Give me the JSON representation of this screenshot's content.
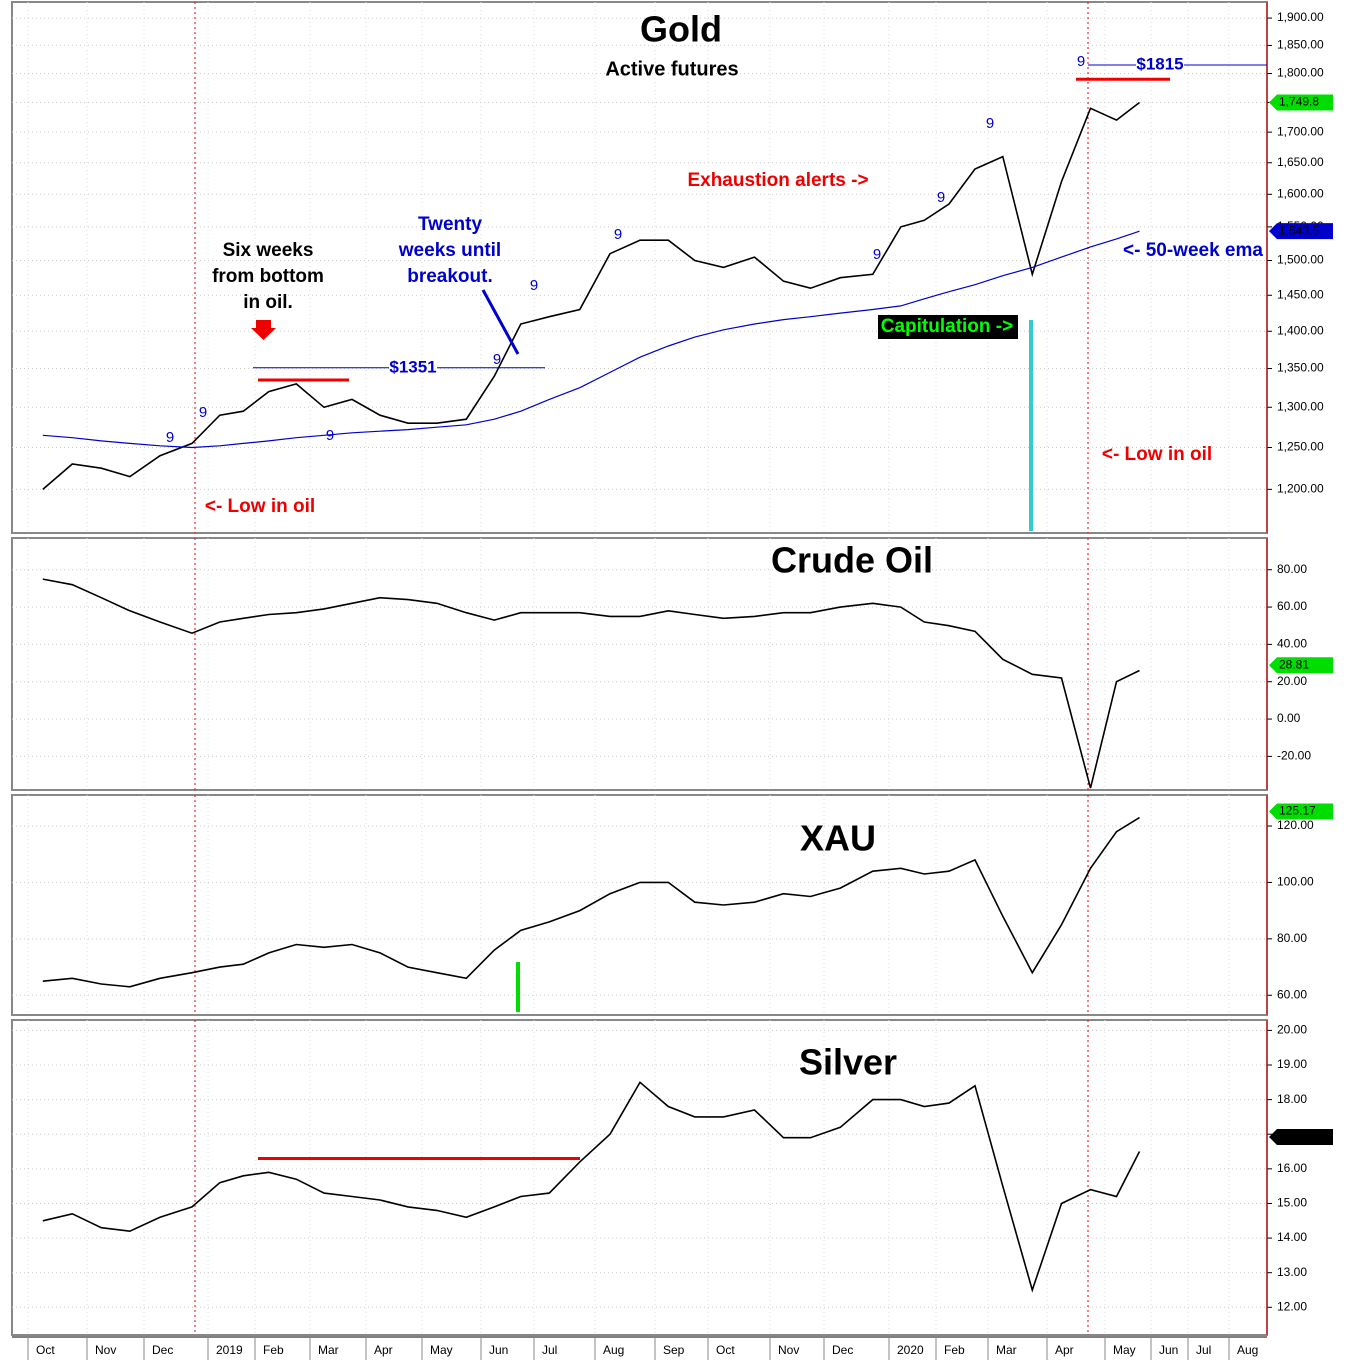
{
  "chart_data": [
    {
      "type": "line",
      "title": "Gold",
      "subtitle": "Active futures",
      "log_scale": true,
      "grid": true,
      "ylim": [
        1150,
        1930
      ],
      "yticks": [
        {
          "value": 1200,
          "label": "1,200.00"
        },
        {
          "value": 1250,
          "label": "1,250.00"
        },
        {
          "value": 1300,
          "label": "1,300.00"
        },
        {
          "value": 1350,
          "label": "1,350.00"
        },
        {
          "value": 1400,
          "label": "1,400.00"
        },
        {
          "value": 1450,
          "label": "1,450.00"
        },
        {
          "value": 1500,
          "label": "1,500.00"
        },
        {
          "value": 1550,
          "label": "1,550.00"
        },
        {
          "value": 1600,
          "label": "1,600.00"
        },
        {
          "value": 1650,
          "label": "1,650.00"
        },
        {
          "value": 1700,
          "label": "1,700.00"
        },
        {
          "value": 1750,
          "label": "1,750.00"
        },
        {
          "value": 1800,
          "label": "1,800.00"
        },
        {
          "value": 1850,
          "label": "1,850.00"
        },
        {
          "value": 1900,
          "label": "1,900.00"
        }
      ],
      "series": [
        {
          "color": "#000000",
          "values": [
            1200,
            1230,
            1225,
            1215,
            1240,
            1255,
            1290,
            1295,
            1320,
            1330,
            1300,
            1310,
            1290,
            1280,
            1280,
            1285,
            1340,
            1410,
            1420,
            1430,
            1510,
            1530,
            1530,
            1500,
            1490,
            1505,
            1470,
            1460,
            1475,
            1480,
            1550,
            1560,
            1585,
            1640,
            1660,
            1480,
            1620,
            1740,
            1720,
            1749.8,
            null,
            null,
            null,
            null,
            null,
            null
          ]
        },
        {
          "color": "#0000cc",
          "values": [
            1265,
            1262,
            1258,
            1255,
            1252,
            1250,
            1252,
            1255,
            1258,
            1262,
            1265,
            1268,
            1270,
            1272,
            1275,
            1278,
            1285,
            1295,
            1310,
            1325,
            1345,
            1365,
            1380,
            1392,
            1402,
            1410,
            1416,
            1420,
            1425,
            1430,
            1435,
            1445,
            1455,
            1465,
            1478,
            1490,
            1505,
            1520,
            1532,
            1543.5,
            null,
            null,
            null,
            null,
            null,
            null
          ]
        }
      ],
      "price_labels": [
        {
          "value": 1749.8,
          "label": "1,749.8",
          "color": "#00dd00"
        },
        {
          "value": 1543.5,
          "label": "1,543.5",
          "color": "#0000cc"
        }
      ],
      "levels": [
        {
          "value": 1351,
          "label": "$1351"
        },
        {
          "value": 1815,
          "label": "$1815"
        }
      ],
      "resistance": [
        1335,
        1790
      ],
      "annotations": [
        {
          "lines": [
            "Six weeks",
            "from bottom",
            "in oil."
          ],
          "color": "#000000"
        },
        {
          "lines": [
            "Twenty",
            "weeks until",
            "breakout."
          ],
          "color": "#0000cc"
        },
        {
          "lines": [
            "Exhaustion alerts ->"
          ],
          "color": "#ee0000"
        },
        {
          "lines": [
            "Capitulation ->"
          ],
          "color": "#00ff00"
        },
        {
          "lines": [
            "<- 50-week ema"
          ],
          "color": "#0000cc"
        },
        {
          "lines": [
            "<- Low in oil"
          ],
          "color": "#ee0000"
        },
        {
          "lines": [
            "<- Low in oil"
          ],
          "color": "#ee0000"
        }
      ],
      "count_marks": [
        "9",
        "9",
        "9",
        "9",
        "9",
        "9",
        "9",
        "9",
        "9",
        "9"
      ]
    },
    {
      "type": "line",
      "title": "Crude Oil",
      "grid": true,
      "ylim": [
        -38,
        97
      ],
      "yticks": [
        {
          "value": -20,
          "label": "-20.00"
        },
        {
          "value": 0,
          "label": "0.00"
        },
        {
          "value": 20,
          "label": "20.00"
        },
        {
          "value": 40,
          "label": "40.00"
        },
        {
          "value": 60,
          "label": "60.00"
        },
        {
          "value": 80,
          "label": "80.00"
        }
      ],
      "series": [
        {
          "color": "#000000",
          "values": [
            75,
            72,
            65,
            58,
            52,
            46,
            52,
            54,
            56,
            57,
            59,
            62,
            65,
            64,
            62,
            57,
            53,
            57,
            57,
            57,
            55,
            55,
            58,
            56,
            54,
            55,
            57,
            57,
            60,
            62,
            60,
            52,
            50,
            47,
            32,
            24,
            22,
            -37,
            20,
            26,
            null,
            null,
            null,
            null,
            null,
            null
          ]
        }
      ],
      "price_labels": [
        {
          "value": 28.81,
          "label": "28.81",
          "color": "#00dd00"
        }
      ]
    },
    {
      "type": "line",
      "title": "XAU",
      "grid": true,
      "ylim": [
        53,
        131
      ],
      "yticks": [
        {
          "value": 60,
          "label": "60.00"
        },
        {
          "value": 80,
          "label": "80.00"
        },
        {
          "value": 100,
          "label": "100.00"
        },
        {
          "value": 120,
          "label": "120.00"
        }
      ],
      "series": [
        {
          "color": "#000000",
          "values": [
            65,
            66,
            64,
            63,
            66,
            68,
            70,
            71,
            75,
            78,
            77,
            78,
            75,
            70,
            68,
            66,
            76,
            83,
            86,
            90,
            96,
            100,
            100,
            93,
            92,
            93,
            96,
            95,
            98,
            104,
            105,
            103,
            104,
            108,
            88,
            68,
            85,
            105,
            118,
            123,
            null,
            null,
            null,
            null,
            null,
            null
          ]
        }
      ],
      "price_labels": [
        {
          "value": 125.17,
          "label": "125.17",
          "color": "#00dd00"
        }
      ]
    },
    {
      "type": "line",
      "title": "Silver",
      "grid": true,
      "ylim": [
        11.2,
        20.3
      ],
      "yticks": [
        {
          "value": 12,
          "label": "12.00"
        },
        {
          "value": 13,
          "label": "13.00"
        },
        {
          "value": 14,
          "label": "14.00"
        },
        {
          "value": 15,
          "label": "15.00"
        },
        {
          "value": 16,
          "label": "16.00"
        },
        {
          "value": 17,
          "label": "17.00"
        },
        {
          "value": 18,
          "label": "18.00"
        },
        {
          "value": 19,
          "label": "19.00"
        },
        {
          "value": 20,
          "label": "20.00"
        }
      ],
      "categories": [
        "Oct",
        null,
        "Nov",
        null,
        "Dec",
        null,
        "2019",
        null,
        "Feb",
        null,
        "Mar",
        null,
        "Apr",
        null,
        "May",
        null,
        "Jun",
        null,
        "Jul",
        null,
        "Aug",
        null,
        "Sep",
        null,
        "Oct",
        null,
        "Nov",
        null,
        "Dec",
        null,
        "2020",
        null,
        "Feb",
        null,
        "Mar",
        null,
        "Apr",
        null,
        "May",
        null,
        "Jun",
        null,
        "Jul",
        null,
        "Aug",
        null
      ],
      "series": [
        {
          "color": "#000000",
          "values": [
            14.5,
            14.7,
            14.3,
            14.2,
            14.6,
            14.9,
            15.6,
            15.8,
            15.9,
            15.7,
            15.3,
            15.2,
            15.1,
            14.9,
            14.8,
            14.6,
            14.9,
            15.2,
            15.3,
            16.2,
            17.0,
            18.5,
            17.8,
            17.5,
            17.5,
            17.7,
            16.9,
            16.9,
            17.2,
            18.0,
            18.0,
            17.8,
            17.9,
            18.4,
            15.5,
            12.5,
            15.0,
            15.4,
            15.2,
            16.5,
            null,
            null,
            null,
            null,
            null,
            null
          ]
        }
      ],
      "price_labels": [
        {
          "value": 16.92,
          "label": "16.92",
          "color": "#000000"
        }
      ],
      "resistance": [
        16.3
      ]
    }
  ]
}
